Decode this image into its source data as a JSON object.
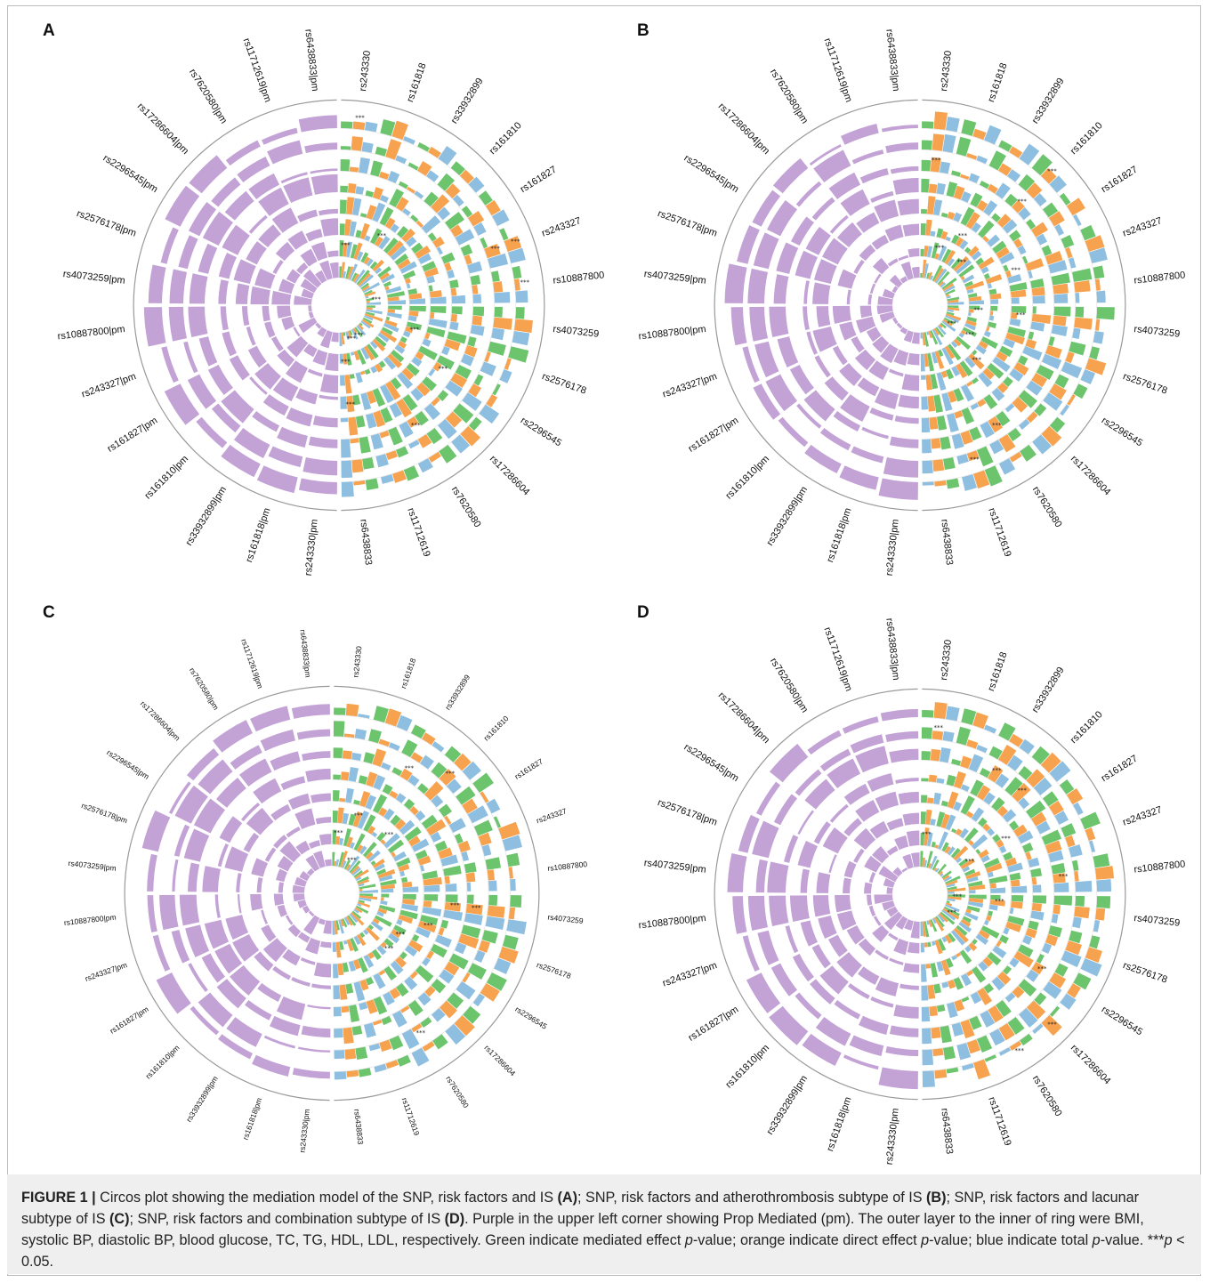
{
  "figure": {
    "colors": {
      "pm": "#c3a2d6",
      "mediated": "#6cc46c",
      "direct": "#f7a24f",
      "total": "#8fbfe0",
      "axis": "#9a9a9a"
    },
    "caption": {
      "label": "FIGURE 1 |",
      "parts": [
        {
          "t": " Circos plot showing the mediation model of the SNP, risk factors and IS "
        },
        {
          "t": "(A)",
          "b": true
        },
        {
          "t": "; SNP, risk factors and atherothrombosis subtype of IS "
        },
        {
          "t": "(B)",
          "b": true
        },
        {
          "t": "; SNP, risk factors and lacunar subtype of IS "
        },
        {
          "t": "(C)",
          "b": true
        },
        {
          "t": "; SNP, risk factors and combination subtype of IS "
        },
        {
          "t": "(D)",
          "b": true
        },
        {
          "t": ". Purple in the upper left corner showing Prop Mediated (pm). The outer layer to the inner of ring were BMI, systolic BP, diastolic BP, blood glucose, TC, TG, HDL, LDL, respectively. Green indicate mediated effect "
        },
        {
          "t": "p",
          "i": true
        },
        {
          "t": "-value; orange indicate direct effect "
        },
        {
          "t": "p",
          "i": true
        },
        {
          "t": "-value; blue indicate total "
        },
        {
          "t": "p",
          "i": true
        },
        {
          "t": "-value. ***"
        },
        {
          "t": "p",
          "i": true
        },
        {
          "t": " < 0.05."
        }
      ]
    }
  },
  "chart_data": [
    {
      "type": "circos",
      "panel": "A",
      "snps_right": [
        "rs243330",
        "rs161818",
        "rs33932899",
        "rs161810",
        "rs161827",
        "rs243327",
        "rs10887800",
        "rs4073259",
        "rs2576178",
        "rs2296545",
        "rs17286604",
        "rs7620580",
        "rs11712619",
        "rs6438833"
      ],
      "snps_left_pm": [
        "rs243330|pm",
        "rs161818|pm",
        "rs33932899|pm",
        "rs161810|pm",
        "rs161827|pm",
        "rs243327|pm",
        "rs10887800|pm",
        "rs4073259|pm",
        "rs2576178|pm",
        "rs2296545|pm",
        "rs17286604|pm",
        "rs7620580|pm",
        "rs11712619|pm",
        "rs6438833|pm"
      ],
      "rings": [
        "BMI",
        "systolic BP",
        "diastolic BP",
        "blood glucose",
        "TC",
        "TG",
        "HDL",
        "LDL"
      ],
      "significance_marker": "***"
    },
    {
      "type": "circos",
      "panel": "B",
      "snps_right": [
        "rs243330",
        "rs161818",
        "rs33932899",
        "rs161810",
        "rs161827",
        "rs243327",
        "rs10887800",
        "rs4073259",
        "rs2576178",
        "rs2296545",
        "rs17286604",
        "rs7620580",
        "rs11712619",
        "rs6438833"
      ],
      "snps_left_pm": [
        "rs243330|pm",
        "rs161818|pm",
        "rs33932899|pm",
        "rs161810|pm",
        "rs161827|pm",
        "rs243327|pm",
        "rs10887800|pm",
        "rs4073259|pm",
        "rs2576178|pm",
        "rs2296545|pm",
        "rs17286604|pm",
        "rs7620580|pm",
        "rs11712619|pm",
        "rs6438833|pm"
      ],
      "rings": [
        "BMI",
        "systolic BP",
        "diastolic BP",
        "blood glucose",
        "TC",
        "TG",
        "HDL",
        "LDL"
      ],
      "significance_marker": "***"
    },
    {
      "type": "circos",
      "panel": "C",
      "snps_right": [
        "rs243330",
        "rs161818",
        "rs33932899",
        "rs161810",
        "rs161827",
        "rs243327",
        "rs10887800",
        "rs4073259",
        "rs2576178",
        "rs2296545",
        "rs17286604",
        "rs7620580",
        "rs11712619",
        "rs6438833"
      ],
      "snps_left_pm": [
        "rs243330|pm",
        "rs161818|pm",
        "rs33932899|pm",
        "rs161810|pm",
        "rs161827|pm",
        "rs243327|pm",
        "rs10887800|pm",
        "rs4073259|pm",
        "rs2576178|pm",
        "rs2296545|pm",
        "rs17286604|pm",
        "rs7620580|pm",
        "rs11712619|pm",
        "rs6438833|pm"
      ],
      "rings": [
        "BMI",
        "systolic BP",
        "diastolic BP",
        "blood glucose",
        "TC",
        "TG",
        "HDL",
        "LDL"
      ],
      "significance_marker": "***"
    },
    {
      "type": "circos",
      "panel": "D",
      "snps_right": [
        "rs243330",
        "rs161818",
        "rs33932899",
        "rs161810",
        "rs161827",
        "rs243327",
        "rs10887800",
        "rs4073259",
        "rs2576178",
        "rs2296545",
        "rs17286604",
        "rs7620580",
        "rs11712619",
        "rs6438833"
      ],
      "snps_left_pm": [
        "rs243330|pm",
        "rs161818|pm",
        "rs33932899|pm",
        "rs161810|pm",
        "rs161827|pm",
        "rs243327|pm",
        "rs10887800|pm",
        "rs4073259|pm",
        "rs2576178|pm",
        "rs2296545|pm",
        "rs17286604|pm",
        "rs7620580|pm",
        "rs11712619|pm",
        "rs6438833|pm"
      ],
      "rings": [
        "BMI",
        "systolic BP",
        "diastolic BP",
        "blood glucose",
        "TC",
        "TG",
        "HDL",
        "LDL"
      ],
      "significance_marker": "***"
    }
  ]
}
